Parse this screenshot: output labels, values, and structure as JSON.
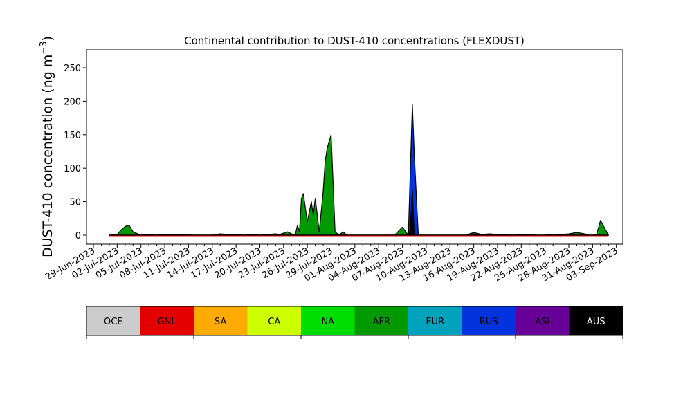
{
  "chart_data": {
    "type": "area",
    "title": "Continental contribution to DUST-410 concentrations (FLEXDUST)",
    "ylabel_main": "DUST-410 concentration (ng m",
    "ylabel_sup": "−3",
    "ylabel_close": ")",
    "xlabel": "",
    "ylim": [
      -14,
      276
    ],
    "y_ticks": [
      0,
      50,
      100,
      150,
      200,
      250
    ],
    "x_ticks": [
      "29-Jun-2023",
      "02-Jul-2023",
      "05-Jul-2023",
      "08-Jul-2023",
      "11-Jul-2023",
      "14-Jul-2023",
      "17-Jul-2023",
      "20-Jul-2023",
      "23-Jul-2023",
      "26-Jul-2023",
      "29-Jul-2023",
      "01-Aug-2023",
      "04-Aug-2023",
      "07-Aug-2023",
      "10-Aug-2023",
      "13-Aug-2023",
      "16-Aug-2023",
      "19-Aug-2023",
      "22-Aug-2023",
      "25-Aug-2023",
      "28-Aug-2023",
      "31-Aug-2023",
      "03-Sep-2023"
    ],
    "x_tick_days": [
      0,
      3,
      6,
      9,
      12,
      15,
      18,
      21,
      24,
      27,
      30,
      33,
      36,
      39,
      42,
      45,
      48,
      51,
      54,
      57,
      60,
      63,
      66
    ],
    "grid": false,
    "legend_placement": "bottom",
    "series": [
      {
        "name": "AFR",
        "color": "#009900",
        "x": [
          "01-Jul-2023",
          "02-Jul-2023",
          "02-Jul-2023 12:00",
          "03-Jul-2023",
          "03-Jul-2023 12:00",
          "04-Jul-2023",
          "05-Jul-2023",
          "06-Jul-2023",
          "07-Jul-2023",
          "08-Jul-2023",
          "12-Jul-2023",
          "14-Jul-2023",
          "15-Jul-2023",
          "16-Jul-2023",
          "17-Jul-2023",
          "18-Jul-2023",
          "19-Jul-2023",
          "20-Jul-2023",
          "21-Jul-2023",
          "22-Jul-2023",
          "22-Jul-2023 12:00",
          "23-Jul-2023",
          "23-Jul-2023 12:00",
          "24-Jul-2023",
          "24-Jul-2023 06:00",
          "24-Jul-2023 12:00",
          "24-Jul-2023 18:00",
          "25-Jul-2023",
          "25-Jul-2023 06:00",
          "25-Jul-2023 12:00",
          "26-Jul-2023",
          "26-Jul-2023 12:00",
          "26-Jul-2023 18:00",
          "27-Jul-2023",
          "27-Jul-2023 06:00",
          "27-Jul-2023 12:00",
          "28-Jul-2023",
          "28-Jul-2023 06:00",
          "28-Jul-2023 12:00",
          "28-Jul-2023 18:00",
          "29-Jul-2023",
          "29-Jul-2023 12:00",
          "30-Jul-2023",
          "30-Jul-2023 12:00",
          "31-Jul-2023",
          "01-Aug-2023",
          "02-Aug-2023",
          "03-Aug-2023",
          "06-Aug-2023",
          "07-Aug-2023",
          "07-Aug-2023 18:00",
          "08-Aug-2023",
          "08-Aug-2023 06:00",
          "08-Aug-2023 12:00",
          "09-Aug-2023",
          "10-Aug-2023",
          "15-Aug-2023",
          "16-Aug-2023",
          "17-Aug-2023",
          "18-Aug-2023",
          "19-Aug-2023",
          "21-Aug-2023",
          "22-Aug-2023",
          "24-Aug-2023",
          "25-Aug-2023",
          "25-Aug-2023 12:00",
          "26-Aug-2023",
          "27-Aug-2023",
          "28-Aug-2023",
          "29-Aug-2023",
          "30-Aug-2023",
          "30-Aug-2023 12:00",
          "31-Aug-2023",
          "31-Aug-2023 12:00",
          "01-Sep-2023",
          "02-Sep-2023"
        ],
        "values": [
          0,
          1,
          8,
          13,
          15,
          5,
          0,
          1,
          0,
          1,
          0,
          0,
          2,
          1,
          1,
          0,
          1,
          0,
          1,
          2,
          1,
          3,
          5,
          2,
          1,
          2,
          15,
          5,
          55,
          62,
          20,
          50,
          30,
          55,
          30,
          5,
          65,
          110,
          130,
          140,
          150,
          5,
          0,
          5,
          0,
          0,
          0,
          0,
          0,
          12,
          0,
          0,
          0,
          0,
          0,
          0,
          0,
          4,
          1,
          2,
          1,
          0,
          1,
          0,
          0,
          1,
          0,
          1,
          2,
          4,
          2,
          0,
          0,
          1,
          22,
          0
        ]
      },
      {
        "name": "RUS",
        "color": "#0033dd",
        "x": [
          "01-Jul-2023",
          "07-Aug-2023 18:00",
          "08-Aug-2023",
          "08-Aug-2023 06:00",
          "08-Aug-2023 12:00",
          "09-Aug-2023",
          "02-Sep-2023"
        ],
        "values": [
          0,
          0,
          100,
          195,
          120,
          0,
          0
        ]
      },
      {
        "name": "ASI",
        "color": "#660099",
        "x": [
          "01-Jul-2023",
          "15-Aug-2023",
          "16-Aug-2023",
          "17-Aug-2023",
          "18-Aug-2023",
          "19-Aug-2023",
          "21-Aug-2023",
          "02-Sep-2023"
        ],
        "values": [
          0,
          0,
          2,
          0,
          1,
          0,
          0,
          0
        ]
      },
      {
        "name": "AUS",
        "color": "#000000",
        "x": [
          "01-Jul-2023",
          "07-Aug-2023 18:00",
          "08-Aug-2023",
          "08-Aug-2023 06:00",
          "08-Aug-2023 12:00",
          "09-Aug-2023",
          "02-Sep-2023"
        ],
        "values": [
          0,
          0,
          10,
          68,
          0,
          0,
          0
        ]
      }
    ],
    "legend": [
      {
        "name": "OCE",
        "color": "#cccccc"
      },
      {
        "name": "GNL",
        "color": "#e50000"
      },
      {
        "name": "SA",
        "color": "#ffaa00"
      },
      {
        "name": "CA",
        "color": "#ccff00"
      },
      {
        "name": "NA",
        "color": "#00dd00"
      },
      {
        "name": "AFR",
        "color": "#009900"
      },
      {
        "name": "EUR",
        "color": "#00a3bb"
      },
      {
        "name": "RUS",
        "color": "#0033dd"
      },
      {
        "name": "ASI",
        "color": "#660099"
      },
      {
        "name": "AUS",
        "color": "#000000"
      }
    ]
  }
}
